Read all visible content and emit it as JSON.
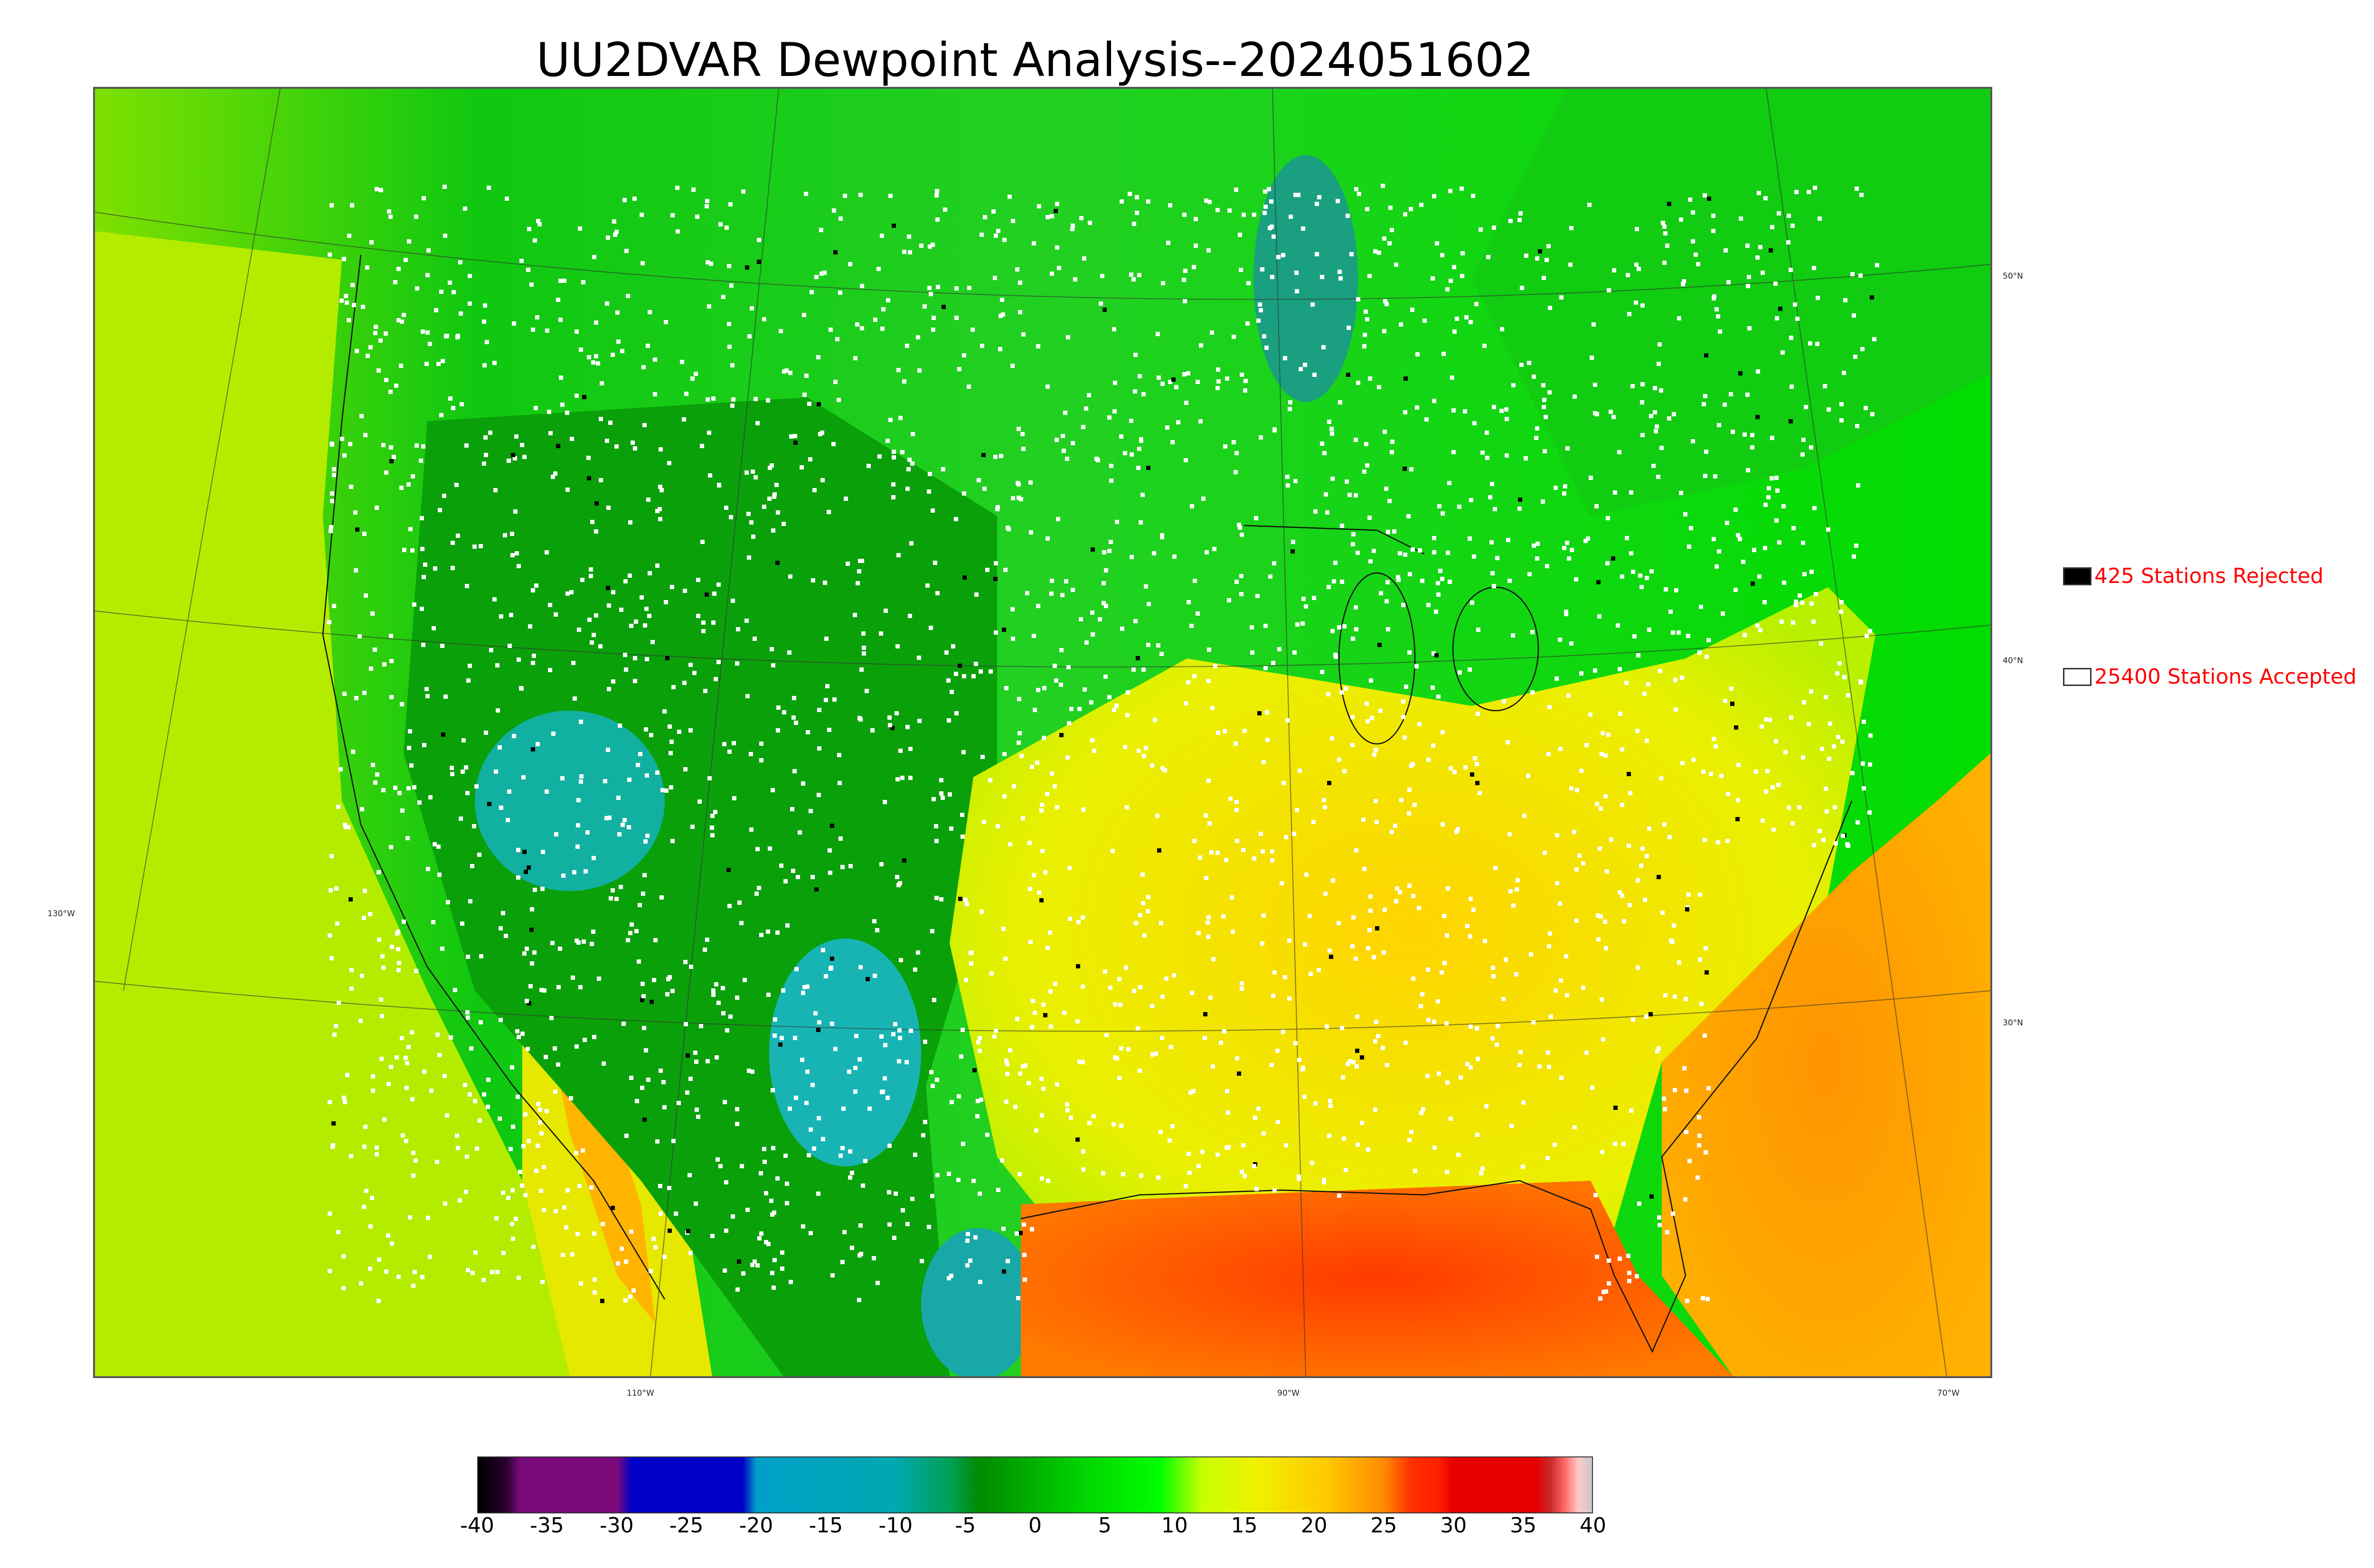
{
  "title": "UU2DVAR Dewpoint Analysis--2024051602",
  "legend": {
    "rejected": {
      "label": "425 Stations Rejected",
      "count": 425,
      "color": "#000000"
    },
    "accepted": {
      "label": "25400 Stations Accepted",
      "count": 25400,
      "color": "#ffffff"
    }
  },
  "graticule": {
    "longitude_labels": [
      "110°W",
      "90°W",
      "70°W"
    ],
    "left_label": "130°W",
    "latitude_labels": [
      "50°N",
      "40°N",
      "30°N"
    ]
  },
  "colorbar": {
    "ticks": [
      "-40",
      "-35",
      "-30",
      "-25",
      "-20",
      "-15",
      "-10",
      "-5",
      "0",
      "5",
      "10",
      "15",
      "20",
      "25",
      "30",
      "35",
      "40"
    ],
    "range": [
      -40,
      40
    ],
    "stops": [
      {
        "value": -40,
        "color": "#000000"
      },
      {
        "value": -38,
        "color": "#2a0030"
      },
      {
        "value": -37,
        "color": "#7a0a7a"
      },
      {
        "value": -30,
        "color": "#7a0a7a"
      },
      {
        "value": -29,
        "color": "#0000c8"
      },
      {
        "value": -21,
        "color": "#0000c8"
      },
      {
        "value": -20,
        "color": "#00a0c8"
      },
      {
        "value": -10,
        "color": "#00a8b0"
      },
      {
        "value": -6,
        "color": "#00a050"
      },
      {
        "value": -4,
        "color": "#008a00"
      },
      {
        "value": 3,
        "color": "#00d000"
      },
      {
        "value": 9,
        "color": "#00ff00"
      },
      {
        "value": 12,
        "color": "#c8ff00"
      },
      {
        "value": 16,
        "color": "#f0f000"
      },
      {
        "value": 21,
        "color": "#ffc800"
      },
      {
        "value": 25,
        "color": "#ff8c00"
      },
      {
        "value": 27,
        "color": "#ff3200"
      },
      {
        "value": 29,
        "color": "#ff1e00"
      },
      {
        "value": 30,
        "color": "#e60000"
      },
      {
        "value": 36,
        "color": "#e60000"
      },
      {
        "value": 37,
        "color": "#c82828"
      },
      {
        "value": 38,
        "color": "#ff6464"
      },
      {
        "value": 39,
        "color": "#ffc8c8"
      },
      {
        "value": 40,
        "color": "#c8c8c8"
      }
    ]
  }
}
